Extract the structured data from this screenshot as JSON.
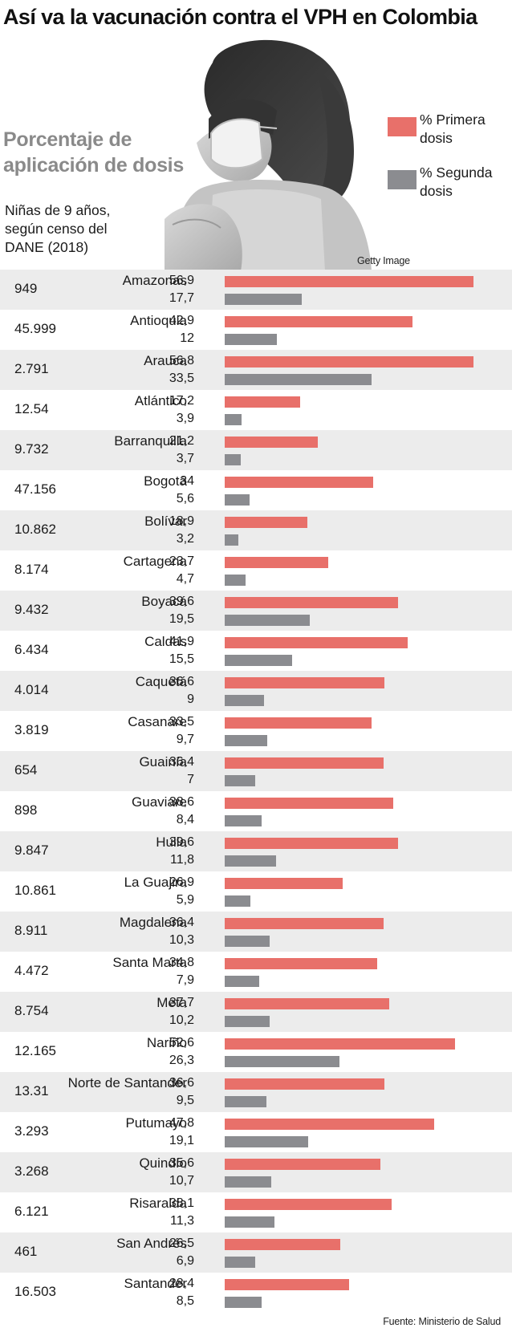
{
  "title": "Así va la vacunación contra el VPH en Colombia",
  "subtitle": "Porcentaje de aplicación de dosis",
  "column_note": "Niñas de 9 años, según censo del DANE (2018)",
  "photo_credit": "Getty Image",
  "source": "Fuente: Ministerio de Salud",
  "colors": {
    "primera": "#e8706a",
    "segunda": "#8b8c90",
    "row_shade": "#ececec"
  },
  "chart_data": {
    "type": "bar",
    "orientation": "horizontal",
    "legend_position": "top-right",
    "series": [
      {
        "name": "% Primera dosis",
        "key": "primera"
      },
      {
        "name": "% Segunda dosis",
        "key": "segunda"
      }
    ],
    "rows": [
      {
        "count": "949",
        "department": "Amazonas",
        "primera": 56.9,
        "primera_label": "56,9",
        "segunda": 17.7,
        "segunda_label": "17,7"
      },
      {
        "count": "45.999",
        "department": "Antioquia",
        "primera": 42.9,
        "primera_label": "42,9",
        "segunda": 12,
        "segunda_label": "12"
      },
      {
        "count": "2.791",
        "department": "Arauca",
        "primera": 56.8,
        "primera_label": "56,8",
        "segunda": 33.5,
        "segunda_label": "33,5"
      },
      {
        "count": "12.54",
        "department": "Atlántico",
        "primera": 17.2,
        "primera_label": "17,2",
        "segunda": 3.9,
        "segunda_label": "3,9"
      },
      {
        "count": "9.732",
        "department": "Barranquilla",
        "primera": 21.2,
        "primera_label": "21,2",
        "segunda": 3.7,
        "segunda_label": "3,7"
      },
      {
        "count": "47.156",
        "department": "Bogotá",
        "primera": 34,
        "primera_label": "34",
        "segunda": 5.6,
        "segunda_label": "5,6"
      },
      {
        "count": "10.862",
        "department": "Bolívar",
        "primera": 18.9,
        "primera_label": "18,9",
        "segunda": 3.2,
        "segunda_label": "3,2"
      },
      {
        "count": "8.174",
        "department": "Cartagena",
        "primera": 23.7,
        "primera_label": "23,7",
        "segunda": 4.7,
        "segunda_label": "4,7"
      },
      {
        "count": "9.432",
        "department": "Boyacá",
        "primera": 39.6,
        "primera_label": "39,6",
        "segunda": 19.5,
        "segunda_label": "19,5"
      },
      {
        "count": "6.434",
        "department": "Caldas",
        "primera": 41.9,
        "primera_label": "41,9",
        "segunda": 15.5,
        "segunda_label": "15,5"
      },
      {
        "count": "4.014",
        "department": "Caquetá",
        "primera": 36.6,
        "primera_label": "36,6",
        "segunda": 9,
        "segunda_label": "9"
      },
      {
        "count": "3.819",
        "department": "Casanare",
        "primera": 33.5,
        "primera_label": "33,5",
        "segunda": 9.7,
        "segunda_label": "9,7"
      },
      {
        "count": "654",
        "department": "Guainía",
        "primera": 36.4,
        "primera_label": "36,4",
        "segunda": 7,
        "segunda_label": "7"
      },
      {
        "count": "898",
        "department": "Guaviare",
        "primera": 38.6,
        "primera_label": "38,6",
        "segunda": 8.4,
        "segunda_label": "8,4"
      },
      {
        "count": "9.847",
        "department": "Huila",
        "primera": 39.6,
        "primera_label": "39,6",
        "segunda": 11.8,
        "segunda_label": "11,8"
      },
      {
        "count": "10.861",
        "department": "La Guajira",
        "primera": 26.9,
        "primera_label": "26,9",
        "segunda": 5.9,
        "segunda_label": "5,9"
      },
      {
        "count": "8.911",
        "department": "Magdalena",
        "primera": 36.4,
        "primera_label": "36,4",
        "segunda": 10.3,
        "segunda_label": "10,3"
      },
      {
        "count": "4.472",
        "department": "Santa Marta",
        "primera": 34.8,
        "primera_label": "34,8",
        "segunda": 7.9,
        "segunda_label": "7,9"
      },
      {
        "count": "8.754",
        "department": "Meta",
        "primera": 37.7,
        "primera_label": "37,7",
        "segunda": 10.2,
        "segunda_label": "10,2"
      },
      {
        "count": "12.165",
        "department": "Nariño",
        "primera": 52.6,
        "primera_label": "52,6",
        "segunda": 26.3,
        "segunda_label": "26,3"
      },
      {
        "count": "13.31",
        "department": "Norte de Santander",
        "primera": 36.6,
        "primera_label": "36,6",
        "segunda": 9.5,
        "segunda_label": "9,5"
      },
      {
        "count": "3.293",
        "department": "Putumayo",
        "primera": 47.8,
        "primera_label": "47,8",
        "segunda": 19.1,
        "segunda_label": "19,1"
      },
      {
        "count": "3.268",
        "department": "Quindío",
        "primera": 35.6,
        "primera_label": "35,6",
        "segunda": 10.7,
        "segunda_label": "10,7"
      },
      {
        "count": "6.121",
        "department": "Risaralda",
        "primera": 38.1,
        "primera_label": "38,1",
        "segunda": 11.3,
        "segunda_label": "11,3"
      },
      {
        "count": "461",
        "department": "San Andrés",
        "primera": 26.5,
        "primera_label": "26,5",
        "segunda": 6.9,
        "segunda_label": "6,9"
      },
      {
        "count": "16.503",
        "department": "Santander",
        "primera": 28.4,
        "primera_label": "28,4",
        "segunda": 8.5,
        "segunda_label": "8,5"
      }
    ]
  }
}
